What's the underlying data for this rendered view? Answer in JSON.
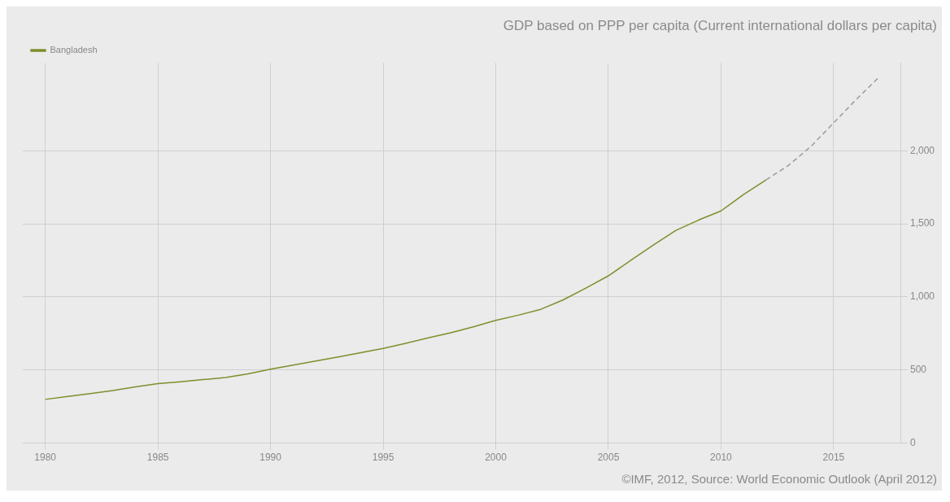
{
  "chart_data": {
    "type": "line",
    "title": "GDP based on PPP per capita (Current international dollars per capita)",
    "annotations": [
      "©IMF, 2012, Source: World Economic Outlook (April 2012)"
    ],
    "series": [
      {
        "name": "Bangladesh",
        "color": "#7d8f2c",
        "line_style": "solid",
        "x": [
          1980,
          1981,
          1982,
          1983,
          1984,
          1985,
          1986,
          1987,
          1988,
          1989,
          1990,
          1991,
          1992,
          1993,
          1994,
          1995,
          1996,
          1997,
          1998,
          1999,
          2000,
          2001,
          2002,
          2003,
          2004,
          2005,
          2006,
          2007,
          2008,
          2009,
          2010,
          2011,
          2012
        ],
        "values": [
          299,
          319,
          339,
          360,
          384,
          407,
          420,
          434,
          448,
          474,
          505,
          533,
          561,
          589,
          618,
          647,
          682,
          720,
          755,
          795,
          839,
          875,
          915,
          980,
          1060,
          1144,
          1250,
          1355,
          1455,
          1525,
          1588,
          1700,
          1800
        ]
      },
      {
        "color": "#9a9a9a",
        "line_style": "dashed",
        "x": [
          2012,
          2013,
          2014,
          2015,
          2016,
          2017
        ],
        "values": [
          1800,
          1900,
          2030,
          2190,
          2350,
          2500
        ]
      }
    ],
    "xlim": [
      1979,
      2018
    ],
    "xticks": [
      1980,
      1985,
      1990,
      1995,
      2000,
      2005,
      2010,
      2015
    ],
    "ylim": [
      0,
      2600
    ],
    "yticks": [
      0,
      500,
      {
        "value": 1000,
        "label": "1,000"
      },
      {
        "value": 1500,
        "label": "1,500"
      },
      {
        "value": 2000,
        "label": "2,000"
      }
    ],
    "grid": true,
    "legend": "top left",
    "marker": "none"
  }
}
